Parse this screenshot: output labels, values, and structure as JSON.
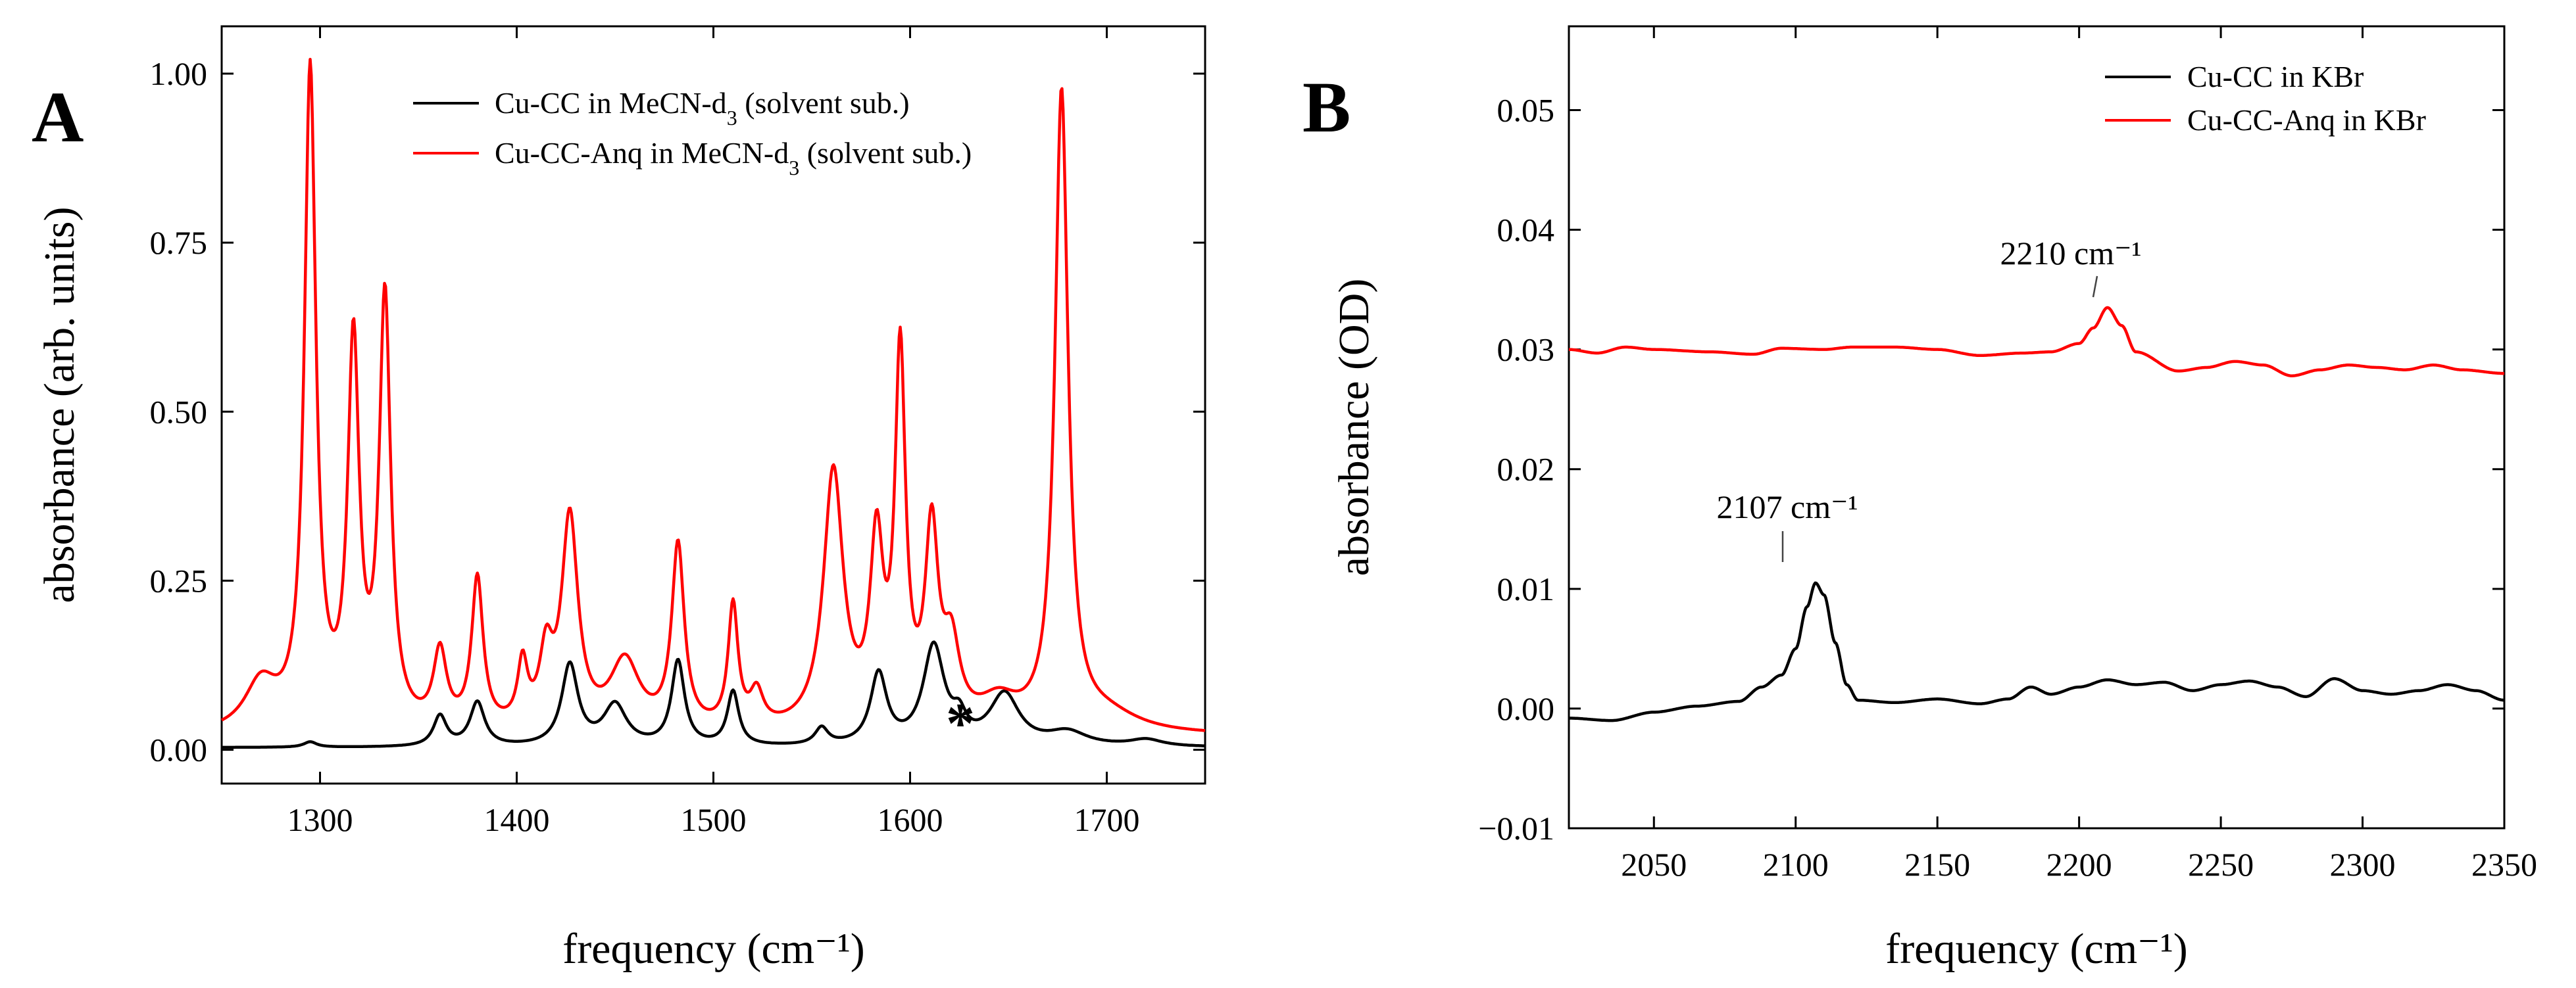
{
  "chart_data": [
    {
      "panel": "A",
      "type": "line",
      "xlabel": "frequency (cm⁻¹)",
      "ylabel": "absorbance (arb. units)",
      "xlim": [
        1250,
        1750
      ],
      "ylim": [
        -0.05,
        1.07
      ],
      "xticks": [
        1300,
        1400,
        1500,
        1600,
        1700
      ],
      "xtick_labels": [
        "1300",
        "1400",
        "1500",
        "1600",
        "1700"
      ],
      "yticks": [
        0,
        0.25,
        0.5,
        0.75,
        1.0
      ],
      "ytick_labels": [
        "0.00",
        "0.25",
        "0.50",
        "0.75",
        "1.00"
      ],
      "legend_position": "top-right",
      "annotations": [
        {
          "text": "*",
          "x": 1634,
          "y": 0.12
        }
      ],
      "series": [
        {
          "name": "Cu-CC in MeCN-d₃ (solvent sub.)",
          "legend_main": "Cu-CC in MeCN-d",
          "legend_sub": "3",
          "legend_tail": " (solvent sub.)",
          "color": "#000000",
          "baseline": 0.003,
          "peaks": [
            [
              1295,
              0.008,
              4
            ],
            [
              1361,
              0.045,
              4
            ],
            [
              1380,
              0.065,
              4.5
            ],
            [
              1427,
              0.12,
              5
            ],
            [
              1450,
              0.06,
              7
            ],
            [
              1482,
              0.125,
              4
            ],
            [
              1510,
              0.08,
              3.5
            ],
            [
              1555,
              0.025,
              4
            ],
            [
              1584,
              0.105,
              5
            ],
            [
              1612,
              0.145,
              6.5
            ],
            [
              1625,
              0.03,
              4
            ],
            [
              1648,
              0.075,
              9
            ],
            [
              1680,
              0.02,
              12
            ],
            [
              1720,
              0.01,
              10
            ]
          ]
        },
        {
          "name": "Cu-CC-Anq in MeCN-d₃ (solvent sub.)",
          "legend_main": "Cu-CC-Anq in MeCN-d",
          "legend_sub": "3",
          "legend_tail": " (solvent sub.)",
          "color": "#ff0000",
          "baseline": 0.02,
          "peaks": [
            [
              1270,
              0.07,
              10
            ],
            [
              1295,
              0.97,
              3.5
            ],
            [
              1317,
              0.56,
              3.5
            ],
            [
              1333,
              0.63,
              3.5
            ],
            [
              1361,
              0.11,
              4
            ],
            [
              1380,
              0.22,
              3.5
            ],
            [
              1403,
              0.09,
              3
            ],
            [
              1415,
              0.1,
              4
            ],
            [
              1427,
              0.31,
              5
            ],
            [
              1455,
              0.1,
              9
            ],
            [
              1482,
              0.27,
              3.8
            ],
            [
              1510,
              0.18,
              3
            ],
            [
              1522,
              0.05,
              4
            ],
            [
              1561,
              0.38,
              6
            ],
            [
              1583,
              0.26,
              4
            ],
            [
              1595,
              0.54,
              3.2
            ],
            [
              1611,
              0.28,
              4
            ],
            [
              1621,
              0.11,
              5
            ],
            [
              1645,
              0.04,
              12
            ],
            [
              1677,
              0.94,
              4
            ],
            [
              1700,
              0.025,
              20
            ]
          ]
        }
      ]
    },
    {
      "panel": "B",
      "type": "line",
      "xlabel": "frequency (cm⁻¹)",
      "ylabel": "absorbance (OD)",
      "xlim": [
        2020,
        2350
      ],
      "ylim": [
        -0.01,
        0.057
      ],
      "xticks": [
        2050,
        2100,
        2150,
        2200,
        2250,
        2300,
        2350
      ],
      "xtick_labels": [
        "2050",
        "2100",
        "2150",
        "2200",
        "2250",
        "2300",
        "2350"
      ],
      "yticks": [
        -0.01,
        0.0,
        0.01,
        0.02,
        0.03,
        0.04,
        0.05
      ],
      "ytick_labels": [
        "−0.01",
        "0.00",
        "0.01",
        "0.02",
        "0.03",
        "0.04",
        "0.05"
      ],
      "legend_position": "top-right",
      "annotations": [
        {
          "text": "2107 cm⁻¹",
          "x": 2107,
          "y": 0.0105
        },
        {
          "text": "2210 cm⁻¹",
          "x": 2210,
          "y": 0.0335
        }
      ],
      "series": [
        {
          "name": "Cu-CC in KBr",
          "color": "#000000",
          "anchors": [
            [
              2020,
              -0.0008
            ],
            [
              2035,
              -0.001
            ],
            [
              2050,
              -0.0003
            ],
            [
              2065,
              0.0002
            ],
            [
              2080,
              0.0006
            ],
            [
              2088,
              0.0018
            ],
            [
              2095,
              0.0028
            ],
            [
              2100,
              0.005
            ],
            [
              2104,
              0.0085
            ],
            [
              2107,
              0.0105
            ],
            [
              2110,
              0.0095
            ],
            [
              2114,
              0.0055
            ],
            [
              2118,
              0.002
            ],
            [
              2122,
              0.0007
            ],
            [
              2135,
              0.0005
            ],
            [
              2150,
              0.0008
            ],
            [
              2165,
              0.0004
            ],
            [
              2175,
              0.0008
            ],
            [
              2183,
              0.0018
            ],
            [
              2190,
              0.0012
            ],
            [
              2200,
              0.0018
            ],
            [
              2210,
              0.0024
            ],
            [
              2220,
              0.002
            ],
            [
              2230,
              0.0022
            ],
            [
              2240,
              0.0015
            ],
            [
              2250,
              0.002
            ],
            [
              2260,
              0.0023
            ],
            [
              2270,
              0.0018
            ],
            [
              2280,
              0.001
            ],
            [
              2290,
              0.0025
            ],
            [
              2300,
              0.0015
            ],
            [
              2310,
              0.0012
            ],
            [
              2320,
              0.0015
            ],
            [
              2330,
              0.002
            ],
            [
              2340,
              0.0015
            ],
            [
              2350,
              0.0007
            ]
          ]
        },
        {
          "name": "Cu-CC-Anq in KBr",
          "color": "#ff0000",
          "anchors": [
            [
              2020,
              0.03
            ],
            [
              2030,
              0.0297
            ],
            [
              2040,
              0.0302
            ],
            [
              2050,
              0.03
            ],
            [
              2070,
              0.0298
            ],
            [
              2085,
              0.0296
            ],
            [
              2095,
              0.0301
            ],
            [
              2110,
              0.03
            ],
            [
              2120,
              0.0302
            ],
            [
              2135,
              0.0302
            ],
            [
              2150,
              0.03
            ],
            [
              2165,
              0.0295
            ],
            [
              2180,
              0.0297
            ],
            [
              2190,
              0.0298
            ],
            [
              2200,
              0.0305
            ],
            [
              2205,
              0.0318
            ],
            [
              2210,
              0.0335
            ],
            [
              2215,
              0.032
            ],
            [
              2220,
              0.0298
            ],
            [
              2235,
              0.0282
            ],
            [
              2245,
              0.0285
            ],
            [
              2255,
              0.029
            ],
            [
              2265,
              0.0287
            ],
            [
              2275,
              0.0278
            ],
            [
              2285,
              0.0283
            ],
            [
              2295,
              0.0287
            ],
            [
              2305,
              0.0285
            ],
            [
              2315,
              0.0283
            ],
            [
              2325,
              0.0287
            ],
            [
              2335,
              0.0283
            ],
            [
              2350,
              0.028
            ]
          ]
        }
      ]
    }
  ]
}
